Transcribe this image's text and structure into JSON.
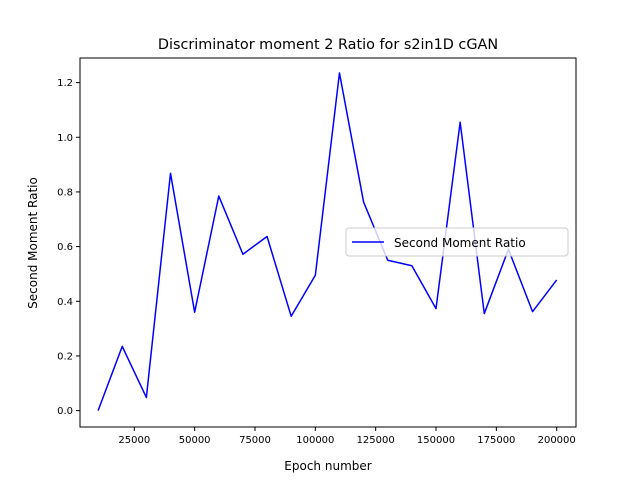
{
  "chart_data": {
    "type": "line",
    "title": "Discriminator moment 2 Ratio for s2in1D cGAN",
    "xlabel": "Epoch number",
    "ylabel": "Second Moment Ratio",
    "xlim": [
      2500,
      208000
    ],
    "ylim": [
      -0.06,
      1.29
    ],
    "xticks": [
      25000,
      50000,
      75000,
      100000,
      125000,
      150000,
      175000,
      200000
    ],
    "xtick_labels": [
      "25000",
      "50000",
      "75000",
      "100000",
      "125000",
      "150000",
      "175000",
      "200000"
    ],
    "yticks": [
      0.0,
      0.2,
      0.4,
      0.6,
      0.8,
      1.0,
      1.2
    ],
    "ytick_labels": [
      "0.0",
      "0.2",
      "0.4",
      "0.6",
      "0.8",
      "1.0",
      "1.2"
    ],
    "grid": false,
    "legend_position": "center-right",
    "series": [
      {
        "name": "Second Moment Ratio",
        "color": "#0000ff",
        "x": [
          10000,
          20000,
          30000,
          40000,
          50000,
          60000,
          70000,
          80000,
          90000,
          100000,
          110000,
          120000,
          130000,
          140000,
          150000,
          160000,
          170000,
          180000,
          190000,
          200000
        ],
        "y": [
          0.0,
          0.235,
          0.048,
          0.868,
          0.36,
          0.785,
          0.572,
          0.637,
          0.345,
          0.495,
          1.235,
          0.763,
          0.55,
          0.53,
          0.373,
          1.055,
          0.355,
          0.59,
          0.362,
          0.478
        ]
      }
    ]
  }
}
